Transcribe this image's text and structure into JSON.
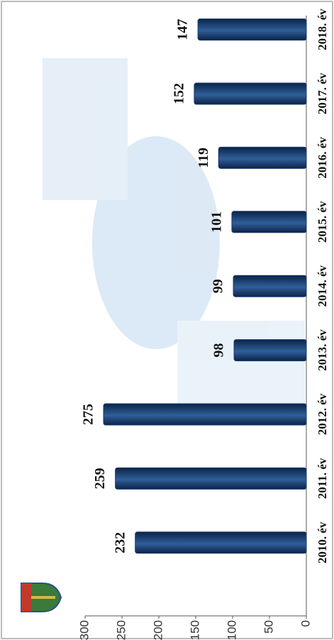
{
  "chart_data": {
    "type": "bar",
    "categories": [
      "2010. év",
      "2011. év",
      "2012. év",
      "2013. év",
      "2014. év",
      "2015. év",
      "2016. év",
      "2017. év",
      "2018. év"
    ],
    "values": [
      232,
      259,
      275,
      98,
      99,
      101,
      119,
      152,
      147
    ],
    "color": "#163a6b",
    "ylim": [
      0,
      300
    ],
    "yticks": [
      0,
      50,
      100,
      150,
      200,
      250,
      300
    ],
    "grid": false
  }
}
